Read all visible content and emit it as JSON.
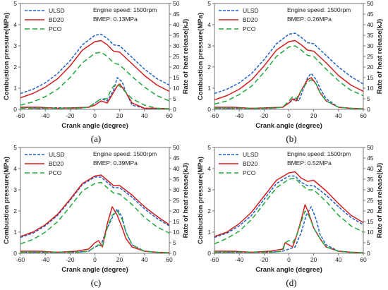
{
  "colors": {
    "ulsd": "#1f5fc7",
    "bd20": "#d21f1f",
    "pco": "#22a93b"
  },
  "chart_data": [
    {
      "type": "line",
      "caption": "(a)",
      "xlabel": "Crank angle (degree)",
      "ylabel": "Combustion pressure(MPa)",
      "y2label": "Rate of heat release(kJ)",
      "xlim": [
        -60,
        60
      ],
      "ylim": [
        0,
        5
      ],
      "y2lim": [
        0,
        50
      ],
      "xticks": [
        -60,
        -40,
        -20,
        0,
        20,
        40,
        60
      ],
      "yticks": [
        0,
        1,
        2,
        3,
        4,
        5
      ],
      "y2ticks": [
        0,
        5,
        10,
        15,
        20,
        25,
        30,
        35,
        40,
        45,
        50
      ],
      "legend": [
        "ULSD",
        "BD20",
        "PCO"
      ],
      "annotations": [
        "Engine speed: 1500rpm",
        "BMEP: 0.13MPa"
      ],
      "series": [
        {
          "name": "ULSD",
          "axis": "pressure",
          "x": [
            -60,
            -50,
            -40,
            -30,
            -20,
            -10,
            0,
            5,
            10,
            15,
            20,
            30,
            40,
            50,
            60
          ],
          "y": [
            0.75,
            0.95,
            1.25,
            1.7,
            2.3,
            3.05,
            3.5,
            3.55,
            3.35,
            3.05,
            3.0,
            2.45,
            1.9,
            1.45,
            1.15
          ]
        },
        {
          "name": "BD20",
          "axis": "pressure",
          "x": [
            -60,
            -50,
            -40,
            -30,
            -20,
            -10,
            0,
            5,
            10,
            15,
            20,
            30,
            40,
            50,
            60
          ],
          "y": [
            0.55,
            0.75,
            1.05,
            1.45,
            2.05,
            2.8,
            3.2,
            3.25,
            3.05,
            2.75,
            2.7,
            2.15,
            1.6,
            1.15,
            0.85
          ]
        },
        {
          "name": "PCO",
          "axis": "pressure",
          "x": [
            -60,
            -50,
            -40,
            -30,
            -20,
            -10,
            0,
            5,
            10,
            15,
            20,
            30,
            40,
            50,
            60
          ],
          "y": [
            0.2,
            0.35,
            0.6,
            0.95,
            1.5,
            2.2,
            2.65,
            2.7,
            2.5,
            2.2,
            2.1,
            1.55,
            1.05,
            0.65,
            0.4
          ]
        },
        {
          "name": "ULSD",
          "axis": "heat",
          "x": [
            -60,
            -45,
            -30,
            -15,
            -5,
            0,
            5,
            10,
            15,
            18,
            22,
            25,
            30,
            40,
            50,
            60
          ],
          "y": [
            1,
            0.5,
            0.8,
            0.5,
            1,
            3,
            5,
            4,
            9,
            15,
            13,
            8,
            2,
            0.5,
            0.5,
            0.2
          ]
        },
        {
          "name": "BD20",
          "axis": "heat",
          "x": [
            -60,
            -45,
            -30,
            -15,
            -5,
            0,
            5,
            10,
            15,
            18,
            20,
            25,
            30,
            40,
            50,
            60
          ],
          "y": [
            1,
            1,
            0.5,
            0.8,
            1,
            2,
            4,
            3,
            8,
            11,
            12,
            8,
            3,
            0.5,
            0.5,
            0.3
          ]
        },
        {
          "name": "PCO",
          "axis": "heat",
          "x": [
            -60,
            -45,
            -30,
            -15,
            -5,
            0,
            5,
            10,
            12,
            15,
            18,
            20,
            25,
            30,
            40,
            50,
            60
          ],
          "y": [
            0.5,
            0.5,
            0.5,
            0.5,
            1,
            3,
            5,
            5,
            8,
            11,
            12,
            11,
            8,
            5,
            2,
            0.5,
            0.2
          ]
        }
      ]
    },
    {
      "type": "line",
      "caption": "(b)",
      "xlabel": "Crank angle (degree)",
      "ylabel": "Combustion pressure(MPa)",
      "y2label": "Rate of heat release(kJ)",
      "xlim": [
        -60,
        60
      ],
      "ylim": [
        0,
        5
      ],
      "y2lim": [
        0,
        50
      ],
      "xticks": [
        -60,
        -40,
        -20,
        0,
        20,
        40,
        60
      ],
      "yticks": [
        0,
        1,
        2,
        3,
        4,
        5
      ],
      "y2ticks": [
        0,
        5,
        10,
        15,
        20,
        25,
        30,
        35,
        40,
        45,
        50
      ],
      "legend": [
        "ULSD",
        "BD20",
        "PCO"
      ],
      "annotations": [
        "Engine speed: 1500rpm",
        "BMEP: 0.26MPa"
      ],
      "series": [
        {
          "name": "ULSD",
          "axis": "pressure",
          "x": [
            -60,
            -50,
            -40,
            -30,
            -20,
            -10,
            0,
            5,
            10,
            15,
            20,
            30,
            40,
            50,
            60
          ],
          "y": [
            0.75,
            0.95,
            1.25,
            1.7,
            2.35,
            3.1,
            3.55,
            3.6,
            3.4,
            3.15,
            3.1,
            2.55,
            2.0,
            1.55,
            1.2
          ]
        },
        {
          "name": "BD20",
          "axis": "pressure",
          "x": [
            -60,
            -50,
            -40,
            -30,
            -20,
            -10,
            0,
            5,
            10,
            15,
            20,
            30,
            40,
            50,
            60
          ],
          "y": [
            0.45,
            0.65,
            0.95,
            1.4,
            2.05,
            2.8,
            3.2,
            3.25,
            3.05,
            2.8,
            2.75,
            2.2,
            1.6,
            1.15,
            0.85
          ]
        },
        {
          "name": "PCO",
          "axis": "pressure",
          "x": [
            -60,
            -50,
            -40,
            -30,
            -20,
            -10,
            0,
            5,
            10,
            15,
            20,
            30,
            40,
            50,
            60
          ],
          "y": [
            0.25,
            0.4,
            0.7,
            1.1,
            1.75,
            2.5,
            2.95,
            3.0,
            2.8,
            2.55,
            2.5,
            1.9,
            1.35,
            0.9,
            0.65
          ]
        },
        {
          "name": "ULSD",
          "axis": "heat",
          "x": [
            -60,
            -45,
            -30,
            -15,
            -5,
            0,
            5,
            8,
            12,
            15,
            18,
            22,
            25,
            30,
            40,
            50,
            60
          ],
          "y": [
            0.5,
            0.5,
            0.5,
            0.5,
            1,
            3,
            5,
            4,
            10,
            15,
            17,
            14,
            10,
            5,
            1,
            0.5,
            0.2
          ]
        },
        {
          "name": "BD20",
          "axis": "heat",
          "x": [
            -60,
            -45,
            -30,
            -15,
            -5,
            0,
            3,
            6,
            10,
            15,
            18,
            22,
            25,
            30,
            40,
            50,
            60
          ],
          "y": [
            1,
            1,
            0.5,
            0.8,
            1,
            3,
            5,
            4,
            9,
            14,
            15,
            12,
            8,
            4,
            1,
            0.5,
            0.3
          ]
        },
        {
          "name": "PCO",
          "axis": "heat",
          "x": [
            -60,
            -45,
            -30,
            -15,
            -5,
            0,
            3,
            6,
            10,
            15,
            18,
            22,
            25,
            30,
            40,
            50,
            60
          ],
          "y": [
            0.5,
            0.5,
            0.5,
            0.5,
            1,
            4,
            6,
            5,
            9,
            13,
            14,
            12,
            8,
            4,
            1,
            0.5,
            0.2
          ]
        }
      ]
    },
    {
      "type": "line",
      "caption": "(c)",
      "xlabel": "Crank angle (degree)",
      "ylabel": "Combustion pressure(MPa)",
      "y2label": "Rate of heat release(kJ)",
      "xlim": [
        -60,
        60
      ],
      "ylim": [
        0,
        5
      ],
      "y2lim": [
        0,
        50
      ],
      "xticks": [
        -60,
        -40,
        -20,
        0,
        20,
        40,
        60
      ],
      "yticks": [
        0,
        1,
        2,
        3,
        4,
        5
      ],
      "y2ticks": [
        0,
        5,
        10,
        15,
        20,
        25,
        30,
        35,
        40,
        45,
        50
      ],
      "legend": [
        "ULSD",
        "BD20",
        "PCO"
      ],
      "annotations": [
        "Engine speed: 1500rpm",
        "BMEP: 0.39MPa"
      ],
      "series": [
        {
          "name": "ULSD",
          "axis": "pressure",
          "x": [
            -60,
            -50,
            -40,
            -30,
            -20,
            -10,
            0,
            5,
            10,
            15,
            20,
            30,
            40,
            50,
            60
          ],
          "y": [
            0.75,
            0.95,
            1.3,
            1.8,
            2.5,
            3.25,
            3.6,
            3.6,
            3.35,
            3.1,
            3.1,
            2.65,
            2.1,
            1.65,
            1.3
          ]
        },
        {
          "name": "BD20",
          "axis": "pressure",
          "x": [
            -60,
            -50,
            -40,
            -30,
            -20,
            -10,
            0,
            5,
            10,
            15,
            20,
            30,
            40,
            50,
            60
          ],
          "y": [
            0.8,
            1.0,
            1.35,
            1.85,
            2.55,
            3.3,
            3.65,
            3.7,
            3.45,
            3.2,
            3.2,
            2.75,
            2.2,
            1.75,
            1.35
          ]
        },
        {
          "name": "PCO",
          "axis": "pressure",
          "x": [
            -60,
            -50,
            -40,
            -30,
            -20,
            -10,
            0,
            5,
            10,
            15,
            20,
            30,
            40,
            50,
            60
          ],
          "y": [
            0.45,
            0.65,
            1.0,
            1.5,
            2.2,
            2.95,
            3.3,
            3.35,
            3.1,
            2.85,
            2.8,
            2.3,
            1.7,
            1.25,
            0.95
          ]
        },
        {
          "name": "ULSD",
          "axis": "heat",
          "x": [
            -60,
            -45,
            -30,
            -15,
            -5,
            0,
            5,
            10,
            15,
            18,
            22,
            25,
            30,
            40,
            50,
            60
          ],
          "y": [
            0.5,
            0.5,
            0.5,
            0.5,
            1,
            3,
            4,
            12,
            18,
            21,
            17,
            10,
            4,
            1,
            0.5,
            0.2
          ]
        },
        {
          "name": "BD20",
          "axis": "heat",
          "x": [
            -60,
            -45,
            -30,
            -15,
            -5,
            0,
            3,
            6,
            10,
            14,
            18,
            22,
            25,
            30,
            40,
            50,
            60
          ],
          "y": [
            1,
            1,
            0.5,
            1,
            2,
            5,
            6,
            3,
            14,
            22,
            18,
            12,
            7,
            3,
            1,
            0.5,
            0.3
          ]
        },
        {
          "name": "PCO",
          "axis": "heat",
          "x": [
            -60,
            -45,
            -30,
            -15,
            -5,
            0,
            3,
            6,
            10,
            14,
            18,
            22,
            25,
            30,
            40,
            50,
            60
          ],
          "y": [
            0.5,
            0.5,
            0.5,
            0.5,
            1,
            3,
            4,
            3,
            12,
            18,
            20,
            16,
            10,
            4,
            1,
            0.5,
            0.2
          ]
        }
      ]
    },
    {
      "type": "line",
      "caption": "(d)",
      "xlabel": "Crank angle (degree)",
      "ylabel": "Combustion pressure(MPa)",
      "y2label": "Rate of heat release(kJ)",
      "xlim": [
        -60,
        60
      ],
      "ylim": [
        0,
        5
      ],
      "y2lim": [
        0,
        50
      ],
      "xticks": [
        -60,
        -40,
        -20,
        0,
        20,
        40,
        60
      ],
      "yticks": [
        0,
        1,
        2,
        3,
        4,
        5
      ],
      "y2ticks": [
        0,
        5,
        10,
        15,
        20,
        25,
        30,
        35,
        40,
        45,
        50
      ],
      "legend": [
        "ULSD",
        "BD20",
        "PCO"
      ],
      "annotations": [
        "Engine speed: 1500rpm",
        "BMEP: 0.52MPa"
      ],
      "series": [
        {
          "name": "ULSD",
          "axis": "pressure",
          "x": [
            -60,
            -50,
            -40,
            -30,
            -20,
            -10,
            0,
            5,
            10,
            15,
            20,
            30,
            40,
            50,
            60
          ],
          "y": [
            0.75,
            0.95,
            1.3,
            1.8,
            2.55,
            3.3,
            3.65,
            3.65,
            3.35,
            3.2,
            3.2,
            2.75,
            2.2,
            1.7,
            1.35
          ]
        },
        {
          "name": "BD20",
          "axis": "pressure",
          "x": [
            -60,
            -50,
            -40,
            -30,
            -20,
            -10,
            0,
            5,
            10,
            15,
            20,
            30,
            40,
            50,
            60
          ],
          "y": [
            0.8,
            1.0,
            1.4,
            1.95,
            2.7,
            3.45,
            3.8,
            3.85,
            3.55,
            3.4,
            3.45,
            2.95,
            2.35,
            1.8,
            1.45
          ]
        },
        {
          "name": "PCO",
          "axis": "pressure",
          "x": [
            -60,
            -50,
            -40,
            -30,
            -20,
            -10,
            0,
            5,
            10,
            15,
            20,
            30,
            40,
            50,
            60
          ],
          "y": [
            0.45,
            0.7,
            1.05,
            1.6,
            2.35,
            3.1,
            3.5,
            3.55,
            3.25,
            3.0,
            3.0,
            2.45,
            1.8,
            1.3,
            1.0
          ]
        },
        {
          "name": "ULSD",
          "axis": "heat",
          "x": [
            -60,
            -45,
            -30,
            -15,
            -5,
            0,
            5,
            10,
            14,
            18,
            22,
            25,
            30,
            40,
            50,
            60
          ],
          "y": [
            0.5,
            0.5,
            0.5,
            0.5,
            1,
            2,
            3,
            10,
            18,
            22,
            16,
            9,
            4,
            1,
            0.5,
            0.2
          ]
        },
        {
          "name": "BD20",
          "axis": "heat",
          "x": [
            -60,
            -45,
            -30,
            -15,
            -5,
            -3,
            0,
            3,
            6,
            10,
            13,
            16,
            20,
            25,
            30,
            40,
            50,
            60
          ],
          "y": [
            1,
            1,
            0.5,
            1,
            2,
            5,
            4,
            3,
            8,
            16,
            23,
            19,
            12,
            7,
            3,
            1,
            0.5,
            0.3
          ]
        },
        {
          "name": "PCO",
          "axis": "heat",
          "x": [
            -60,
            -45,
            -30,
            -15,
            -5,
            -3,
            0,
            3,
            6,
            10,
            13,
            16,
            20,
            25,
            30,
            40,
            50,
            60
          ],
          "y": [
            0.5,
            0.5,
            0.5,
            0.5,
            1,
            5,
            6,
            5,
            8,
            15,
            20,
            18,
            12,
            7,
            3,
            1,
            0.5,
            0.2
          ]
        }
      ]
    }
  ]
}
